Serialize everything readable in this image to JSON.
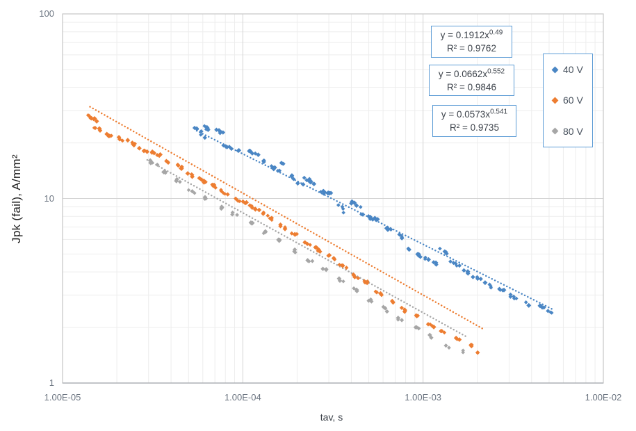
{
  "colors": {
    "blue": "#4A86C4",
    "orange": "#ED7D31",
    "gray": "#A6A6A6",
    "grid_minor": "#EDEDED",
    "grid_major": "#D3D3D3",
    "plot_border": "#C6C6C6",
    "axis_line": "#A4A8AD",
    "box_border": "#5B9BD5"
  },
  "axes": {
    "x": {
      "title": "tav, s",
      "scale": "log",
      "ticks": [
        {
          "label": "1.00E-05",
          "value": 1e-05
        },
        {
          "label": "1.00E-04",
          "value": 0.0001
        },
        {
          "label": "1.00E-03",
          "value": 0.001
        },
        {
          "label": "1.00E-02",
          "value": 0.01
        }
      ]
    },
    "y": {
      "title": "Jpk (fail),  A/mm²",
      "scale": "log",
      "ticks": [
        {
          "label": "1",
          "value": 1
        },
        {
          "label": "10",
          "value": 10
        },
        {
          "label": "100",
          "value": 100
        }
      ]
    }
  },
  "legend": {
    "items": [
      {
        "label": "40 V",
        "color": "#4A86C4"
      },
      {
        "label": "60 V",
        "color": "#ED7D31"
      },
      {
        "label": "80 V",
        "color": "#A6A6A6"
      }
    ]
  },
  "equations": [
    {
      "base": "y = 0.1912x",
      "exp": "0.49",
      "r2": "R² = 0.9762"
    },
    {
      "base": "y = 0.0662x",
      "exp": "0.552",
      "r2": "R² = 0.9846"
    },
    {
      "base": "y = 0.0573x",
      "exp": "0.541",
      "r2": "R² = 0.9735"
    }
  ],
  "chart_data": {
    "type": "scatter",
    "title": "",
    "xlabel": "tav, s",
    "ylabel": "Jpk (fail), A/mm²",
    "x_scale": "log",
    "y_scale": "log",
    "x_range": [
      1e-05,
      0.01
    ],
    "y_range": [
      1,
      100
    ],
    "grid": "major+minor",
    "legend_position": "right",
    "series": [
      {
        "name": "40 V",
        "color": "#4A86C4",
        "marker": "diamond",
        "fit": {
          "label": "y = 0.1912x^0.49",
          "a": 0.1912,
          "b": -0.49,
          "r2": 0.9762,
          "x_start": 5.55e-05,
          "x_end": 0.0053
        },
        "clusters_xyn": [
          [
            5.6e-05,
            23.5,
            5
          ],
          [
            6.3e-05,
            24,
            6
          ],
          [
            6e-05,
            21.5,
            2
          ],
          [
            7.4e-05,
            23,
            5
          ],
          [
            8.3e-05,
            19,
            6
          ],
          [
            9.5e-05,
            18,
            2
          ],
          [
            0.000115,
            17.5,
            7
          ],
          [
            0.00013,
            16,
            3
          ],
          [
            0.00015,
            14.5,
            6
          ],
          [
            0.00017,
            15.5,
            3
          ],
          [
            0.00019,
            13,
            4
          ],
          [
            0.00021,
            12,
            2
          ],
          [
            0.000235,
            12.5,
            7
          ],
          [
            0.00027,
            11,
            6
          ],
          [
            0.00031,
            10.5,
            5
          ],
          [
            0.00035,
            9,
            3
          ],
          [
            0.00036,
            8.3,
            1
          ],
          [
            0.00042,
            9.3,
            6
          ],
          [
            0.00049,
            8,
            7
          ],
          [
            0.00056,
            7.6,
            5
          ],
          [
            0.00064,
            6.8,
            4
          ],
          [
            0.00074,
            6.3,
            3
          ],
          [
            0.00086,
            5.3,
            4
          ],
          [
            0.001,
            4.8,
            7
          ],
          [
            0.00115,
            4.5,
            4
          ],
          [
            0.0013,
            5.2,
            5
          ],
          [
            0.0015,
            4.4,
            5
          ],
          [
            0.00175,
            4.0,
            4
          ],
          [
            0.002,
            3.7,
            5
          ],
          [
            0.0023,
            3.4,
            4
          ],
          [
            0.0027,
            3.2,
            4
          ],
          [
            0.0032,
            2.9,
            5
          ],
          [
            0.0038,
            2.7,
            3
          ],
          [
            0.0045,
            2.6,
            4
          ],
          [
            0.0051,
            2.45,
            3
          ]
        ]
      },
      {
        "name": "60 V",
        "color": "#ED7D31",
        "marker": "diamond",
        "fit": {
          "label": "y = 0.0662x^0.552",
          "a": 0.0662,
          "b": -0.552,
          "r2": 0.9846,
          "x_start": 1.42e-05,
          "x_end": 0.00215
        },
        "clusters_xyn": [
          [
            1.45e-05,
            27.5,
            7
          ],
          [
            1.55e-05,
            24,
            4
          ],
          [
            1.8e-05,
            22,
            5
          ],
          [
            2.1e-05,
            21,
            3
          ],
          [
            2.4e-05,
            20,
            5
          ],
          [
            2.8e-05,
            18.5,
            4
          ],
          [
            3.3e-05,
            17.5,
            6
          ],
          [
            3.8e-05,
            16,
            3
          ],
          [
            4.4e-05,
            15,
            6
          ],
          [
            5.1e-05,
            13.5,
            4
          ],
          [
            5.9e-05,
            12.5,
            5
          ],
          [
            6.8e-05,
            11.8,
            4
          ],
          [
            7.9e-05,
            10.8,
            6
          ],
          [
            9.2e-05,
            9.8,
            4
          ],
          [
            0.000107,
            9.3,
            6
          ],
          [
            0.000124,
            8.5,
            5
          ],
          [
            0.000144,
            7.8,
            4
          ],
          [
            0.000167,
            7.0,
            4
          ],
          [
            0.000195,
            6.4,
            4
          ],
          [
            0.000226,
            5.7,
            4
          ],
          [
            0.00026,
            5.3,
            6
          ],
          [
            0.00031,
            4.8,
            5
          ],
          [
            0.00036,
            4.3,
            6
          ],
          [
            0.00042,
            3.8,
            4
          ],
          [
            0.00049,
            3.5,
            4
          ],
          [
            0.00057,
            3.1,
            4
          ],
          [
            0.00067,
            2.8,
            3
          ],
          [
            0.00078,
            2.5,
            4
          ],
          [
            0.00092,
            2.3,
            3
          ],
          [
            0.0011,
            2.05,
            4
          ],
          [
            0.0013,
            1.9,
            3
          ],
          [
            0.00155,
            1.75,
            3
          ],
          [
            0.00185,
            1.6,
            3
          ],
          [
            0.00205,
            1.45,
            2
          ]
        ]
      },
      {
        "name": "80 V",
        "color": "#A6A6A6",
        "marker": "diamond",
        "fit": {
          "label": "y = 0.0573x^0.541",
          "a": 0.0573,
          "b": -0.541,
          "r2": 0.9735,
          "x_start": 2.95e-05,
          "x_end": 0.00175
        },
        "clusters_xyn": [
          [
            3.2e-05,
            15.5,
            4
          ],
          [
            3.7e-05,
            14,
            3
          ],
          [
            4.3e-05,
            12.5,
            3
          ],
          [
            5.2e-05,
            11,
            3
          ],
          [
            6.2e-05,
            10,
            3
          ],
          [
            7.5e-05,
            9,
            3
          ],
          [
            9e-05,
            8.2,
            3
          ],
          [
            0.00011,
            7.4,
            3
          ],
          [
            0.00013,
            6.6,
            3
          ],
          [
            0.00016,
            5.9,
            3
          ],
          [
            0.000195,
            5.2,
            3
          ],
          [
            0.000235,
            4.6,
            3
          ],
          [
            0.000285,
            4.1,
            3
          ],
          [
            0.000345,
            3.6,
            3
          ],
          [
            0.00042,
            3.2,
            3
          ],
          [
            0.00051,
            2.8,
            3
          ],
          [
            0.00062,
            2.5,
            3
          ],
          [
            0.00075,
            2.2,
            3
          ],
          [
            0.00091,
            2.0,
            3
          ],
          [
            0.0011,
            1.8,
            2
          ],
          [
            0.00135,
            1.6,
            2
          ],
          [
            0.00165,
            1.5,
            2
          ]
        ]
      }
    ]
  }
}
